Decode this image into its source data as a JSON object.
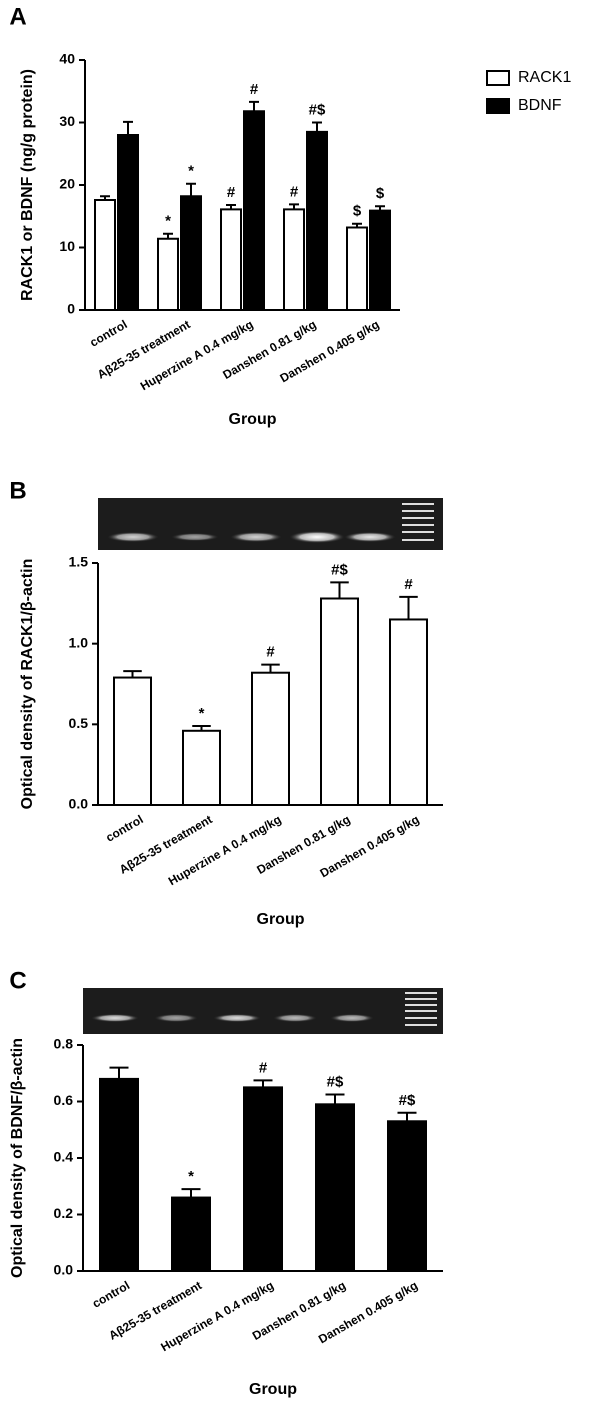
{
  "chart_data": [
    {
      "type": "bar",
      "panel_label": "A",
      "y_label": "RACK1 or BDNF  (ng/g protein)",
      "x_label": "Group",
      "categories": [
        "control",
        "Aβ25-35 treatment",
        "Huperzine A 0.4 mg/kg",
        "Danshen  0.81 g/kg",
        "Danshen  0.405 g/kg"
      ],
      "series": [
        {
          "name": "RACK1",
          "color": "#ffffff",
          "values": [
            17.6,
            11.4,
            16.1,
            16.1,
            13.2
          ],
          "errors": [
            0.6,
            0.8,
            0.7,
            0.8,
            0.6
          ],
          "annotations": [
            null,
            "*",
            "#",
            "#",
            "$"
          ]
        },
        {
          "name": "BDNF",
          "color": "#000000",
          "values": [
            28.0,
            18.2,
            31.8,
            28.5,
            15.9
          ],
          "errors": [
            2.1,
            2.0,
            1.5,
            1.5,
            0.7
          ],
          "annotations": [
            null,
            "*",
            "#",
            "#$",
            "$"
          ]
        }
      ],
      "ylim": [
        0,
        40
      ],
      "yticks": [
        0,
        10,
        20,
        30,
        40
      ],
      "legend": "right"
    },
    {
      "type": "bar",
      "panel_label": "B",
      "y_label": "Optical density of RACK1/β-actin",
      "x_label": "Group",
      "categories": [
        "control",
        "Aβ25-35 treatment",
        "Huperzine A 0.4 mg/kg",
        "Danshen  0.81 g/kg",
        "Danshen  0.405 g/kg"
      ],
      "series": [
        {
          "color": "#ffffff",
          "values": [
            0.79,
            0.46,
            0.82,
            1.28,
            1.15
          ],
          "errors": [
            0.04,
            0.03,
            0.05,
            0.1,
            0.14
          ],
          "annotations": [
            null,
            "*",
            "#",
            "#$",
            "#"
          ]
        }
      ],
      "ylim": [
        0,
        1.5
      ],
      "yticks": [
        {
          "value": 0,
          "label": "0.0"
        },
        0.5,
        {
          "value": 1,
          "label": "1.0"
        },
        1.5
      ]
    },
    {
      "type": "bar",
      "panel_label": "C",
      "y_label": "Optical density of BDNF/β-actin",
      "x_label": "Group",
      "categories": [
        "control",
        "Aβ25-35 treatment",
        "Huperzine A 0.4 mg/kg",
        "Danshen  0.81 g/kg",
        "Danshen  0.405 g/kg"
      ],
      "series": [
        {
          "color": "#000000",
          "values": [
            0.68,
            0.26,
            0.65,
            0.59,
            0.53
          ],
          "errors": [
            0.04,
            0.03,
            0.025,
            0.035,
            0.03
          ],
          "annotations": [
            null,
            "*",
            "#",
            "#$",
            "#$"
          ]
        }
      ],
      "ylim": [
        0,
        0.8
      ],
      "yticks": [
        {
          "value": 0,
          "label": "0.0"
        },
        0.2,
        0.4,
        0.6,
        0.8
      ]
    }
  ]
}
